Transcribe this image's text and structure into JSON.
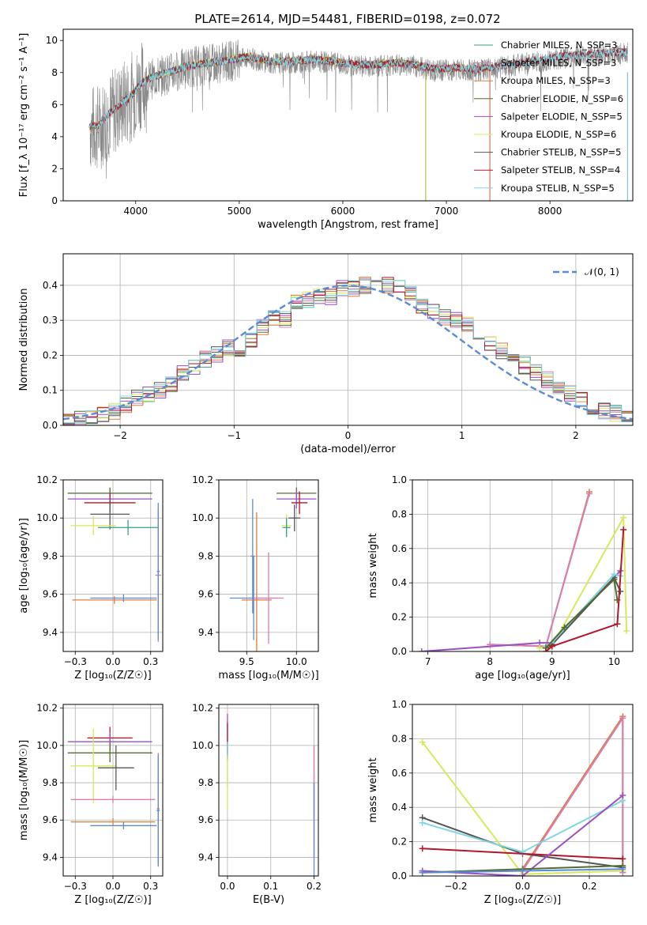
{
  "figure": {
    "title": "PLATE=2614, MJD=54481, FIBERID=0198, z=0.072"
  },
  "palette": {
    "Chabrier MILES": "#3a9d8e",
    "Salpeter MILES": "#d77fb4",
    "Kroupa MILES": "#e07b39",
    "Chabrier ELODIE": "#556b2f",
    "Salpeter ELODIE": "#9a4fc3",
    "Kroupa ELODIE": "#d7e95a",
    "Chabrier STELIB": "#555555",
    "Salpeter STELIB": "#b2182b",
    "Kroupa STELIB": "#7fd6df",
    "observed": "#888888",
    "gaussian": "#5b8bd6",
    "mass-blue": "#5b8bd6"
  },
  "chart_data": [
    {
      "id": "spectrum",
      "type": "line",
      "xlabel": "wavelength [Angstrom, rest frame]",
      "ylabel": "Flux [f_λ 10⁻¹⁷ erg cm⁻² s⁻¹ A⁻¹]",
      "xlim": [
        3300,
        8800
      ],
      "ylim": [
        0,
        10.7
      ],
      "xticks": [
        4000,
        5000,
        6000,
        7000,
        8000
      ],
      "yticks": [
        0,
        2,
        4,
        6,
        8,
        10
      ],
      "grid": false,
      "legend_position": "top-right",
      "legend": [
        {
          "label": "Chabrier MILES, N_SSP=3",
          "series": "Chabrier MILES"
        },
        {
          "label": "Salpeter MILES, N_SSP=3",
          "series": "Salpeter MILES"
        },
        {
          "label": "Kroupa MILES, N_SSP=3",
          "series": "Kroupa MILES"
        },
        {
          "label": "Chabrier ELODIE, N_SSP=6",
          "series": "Chabrier ELODIE"
        },
        {
          "label": "Salpeter ELODIE, N_SSP=5",
          "series": "Salpeter ELODIE"
        },
        {
          "label": "Kroupa ELODIE, N_SSP=6",
          "series": "Kroupa ELODIE"
        },
        {
          "label": "Chabrier STELIB, N_SSP=5",
          "series": "Chabrier STELIB"
        },
        {
          "label": "Salpeter STELIB, N_SSP=4",
          "series": "Salpeter STELIB"
        },
        {
          "label": "Kroupa STELIB, N_SSP=5",
          "series": "Kroupa STELIB"
        }
      ],
      "continuum": {
        "x": [
          3560,
          3650,
          3750,
          3850,
          3950,
          4050,
          4150,
          4300,
          4500,
          4700,
          4900,
          5100,
          5300,
          5500,
          5700,
          5900,
          6100,
          6300,
          6500,
          6700,
          6900,
          7100,
          7300,
          7500,
          7700,
          7900,
          8100,
          8300,
          8500,
          8750
        ],
        "y": [
          4.5,
          4.6,
          5.4,
          5.9,
          6.4,
          7.2,
          7.6,
          7.9,
          8.3,
          8.5,
          8.7,
          8.9,
          8.6,
          8.6,
          8.7,
          8.6,
          8.4,
          8.4,
          8.5,
          8.4,
          8.1,
          8.2,
          8.1,
          8.3,
          8.5,
          8.7,
          8.9,
          9.0,
          9.1,
          9.2
        ]
      },
      "model_ranges": [
        {
          "series": "Chabrier MILES",
          "x": [
            3550,
            7420
          ]
        },
        {
          "series": "Salpeter MILES",
          "x": [
            3550,
            7420
          ]
        },
        {
          "series": "Kroupa MILES",
          "x": [
            3550,
            7420
          ]
        },
        {
          "series": "Chabrier ELODIE",
          "x": [
            3900,
            6800
          ]
        },
        {
          "series": "Salpeter ELODIE",
          "x": [
            3900,
            6800
          ]
        },
        {
          "series": "Kroupa ELODIE",
          "x": [
            3900,
            6800
          ]
        },
        {
          "series": "Chabrier STELIB",
          "x": [
            3550,
            8750
          ]
        },
        {
          "series": "Salpeter STELIB",
          "x": [
            3550,
            8750
          ]
        },
        {
          "series": "Kroupa STELIB",
          "x": [
            3550,
            8750
          ]
        }
      ]
    },
    {
      "id": "residual-hist",
      "type": "line",
      "xlabel": "(data-model)/error",
      "ylabel": "Normed distribution",
      "xlim": [
        -2.5,
        2.5
      ],
      "ylim": [
        0,
        0.49
      ],
      "xticks": [
        -2,
        -1,
        0,
        1,
        2
      ],
      "yticks": [
        0.0,
        0.1,
        0.2,
        0.3,
        0.4
      ],
      "grid": true,
      "legend_position": "top-right",
      "gaussian_label": "𝒩(0, 1)",
      "bin_edges": [
        -2.5,
        -2.4,
        -2.3,
        -2.2,
        -2.1,
        -2.0,
        -1.9,
        -1.8,
        -1.7,
        -1.6,
        -1.5,
        -1.4,
        -1.3,
        -1.2,
        -1.1,
        -1.0,
        -0.9,
        -0.8,
        -0.7,
        -0.6,
        -0.5,
        -0.4,
        -0.3,
        -0.2,
        -0.1,
        0.0,
        0.1,
        0.2,
        0.3,
        0.4,
        0.5,
        0.6,
        0.7,
        0.8,
        0.9,
        1.0,
        1.1,
        1.2,
        1.3,
        1.4,
        1.5,
        1.6,
        1.7,
        1.8,
        1.9,
        2.0,
        2.1,
        2.2,
        2.3,
        2.4,
        2.5
      ],
      "base_density": [
        0.015,
        0.02,
        0.025,
        0.035,
        0.04,
        0.06,
        0.08,
        0.09,
        0.1,
        0.12,
        0.15,
        0.17,
        0.19,
        0.2,
        0.22,
        0.21,
        0.24,
        0.28,
        0.31,
        0.3,
        0.35,
        0.36,
        0.37,
        0.37,
        0.39,
        0.39,
        0.4,
        0.41,
        0.4,
        0.39,
        0.38,
        0.34,
        0.33,
        0.31,
        0.3,
        0.29,
        0.26,
        0.23,
        0.21,
        0.19,
        0.17,
        0.15,
        0.13,
        0.11,
        0.09,
        0.07,
        0.05,
        0.04,
        0.035,
        0.025
      ]
    },
    {
      "id": "age-vs-Z",
      "type": "scatter",
      "xlabel": "Z [log₁₀(Z/Z☉)]",
      "ylabel": "age  [log₁₀(age/yr)]",
      "xlim": [
        -0.33,
        0.33
      ],
      "ylim": [
        9.3,
        10.2
      ],
      "xticks": [
        -0.25,
        0.0,
        0.25
      ],
      "yticks": [
        9.4,
        9.6,
        9.8,
        10.0,
        10.2
      ],
      "grid": true,
      "points": [
        {
          "series": "Kroupa STELIB",
          "x": -0.02,
          "y": 10.13,
          "xerr": 0.28,
          "yerr": 0.03
        },
        {
          "series": "Chabrier ELODIE",
          "x": -0.02,
          "y": 10.13,
          "xerr": 0.28,
          "yerr": 0.03
        },
        {
          "series": "Salpeter ELODIE",
          "x": -0.02,
          "y": 10.1,
          "xerr": 0.28,
          "yerr": 0.03
        },
        {
          "series": "Salpeter STELIB",
          "x": -0.02,
          "y": 10.08,
          "xerr": 0.17,
          "yerr": 0.05
        },
        {
          "series": "Chabrier STELIB",
          "x": -0.02,
          "y": 10.02,
          "xerr": 0.13,
          "yerr": 0.08
        },
        {
          "series": "Kroupa ELODIE",
          "x": -0.13,
          "y": 9.96,
          "xerr": 0.15,
          "yerr": 0.05
        },
        {
          "series": "Chabrier MILES",
          "x": 0.1,
          "y": 9.95,
          "xerr": 0.2,
          "yerr": 0.04
        },
        {
          "series": "Salpeter MILES",
          "x": 0.3,
          "y": 9.7,
          "xerr": 0.02,
          "yerr": 0.35
        },
        {
          "series": "Kroupa MILES",
          "x": 0.01,
          "y": 9.57,
          "xerr": 0.28,
          "yerr": 0.02
        },
        {
          "series": "mass-blue",
          "x": 0.07,
          "y": 9.58,
          "xerr": 0.22,
          "yerr": 0.02
        },
        {
          "series": "mass-blue",
          "x": 0.3,
          "y": 9.72,
          "xerr": 0.01,
          "yerr": 0.36
        }
      ]
    },
    {
      "id": "age-vs-mass",
      "type": "scatter",
      "xlabel": "mass [log₁₀(M/M☉)]",
      "ylabel": "",
      "xlim": [
        9.22,
        10.22
      ],
      "ylim": [
        9.3,
        10.2
      ],
      "xticks": [
        9.5,
        10.0
      ],
      "yticks": [
        9.4,
        9.6,
        9.8,
        10.0,
        10.2
      ],
      "grid": true,
      "points": [
        {
          "series": "Chabrier ELODIE",
          "x": 10.0,
          "y": 10.13,
          "xerr": 0.2,
          "yerr": 0.03
        },
        {
          "series": "Salpeter ELODIE",
          "x": 10.0,
          "y": 10.1,
          "xerr": 0.2,
          "yerr": 0.05
        },
        {
          "series": "Salpeter STELIB",
          "x": 10.03,
          "y": 10.08,
          "xerr": 0.08,
          "yerr": 0.06
        },
        {
          "series": "Chabrier STELIB",
          "x": 9.98,
          "y": 10.0,
          "xerr": 0.06,
          "yerr": 0.07
        },
        {
          "series": "Kroupa ELODIE",
          "x": 9.9,
          "y": 9.96,
          "xerr": 0.05,
          "yerr": 0.06
        },
        {
          "series": "Chabrier MILES",
          "x": 9.9,
          "y": 9.95,
          "xerr": 0.04,
          "yerr": 0.05
        },
        {
          "series": "mass-blue",
          "x": 9.57,
          "y": 9.58,
          "xerr": 0.24,
          "yerr": 0.22
        },
        {
          "series": "Kroupa MILES",
          "x": 9.6,
          "y": 9.57,
          "xerr": 0.15,
          "yerr": 0.46
        },
        {
          "series": "Salpeter MILES",
          "x": 9.72,
          "y": 9.58,
          "xerr": 0.15,
          "yerr": 0.24
        },
        {
          "series": "mass-blue",
          "x": 9.56,
          "y": 9.8,
          "xerr": 0.02,
          "yerr": 0.3
        }
      ]
    },
    {
      "id": "mass-weight-vs-age",
      "type": "line",
      "xlabel": "age  [log₁₀(age/yr)]",
      "ylabel": "mass weight",
      "xlim": [
        6.75,
        10.3
      ],
      "ylim": [
        0,
        1.0
      ],
      "xticks": [
        7,
        8,
        9,
        10
      ],
      "yticks": [
        0.0,
        0.2,
        0.4,
        0.6,
        0.8,
        1.0
      ],
      "grid": true,
      "series": [
        {
          "series": "Kroupa MILES",
          "x": [
            8.0,
            8.9,
            9.6
          ],
          "y": [
            0.04,
            0.03,
            0.93
          ]
        },
        {
          "series": "Salpeter MILES",
          "x": [
            8.0,
            8.9,
            9.6
          ],
          "y": [
            0.04,
            0.03,
            0.92
          ]
        },
        {
          "series": "Salpeter ELODIE",
          "x": [
            6.9,
            8.8,
            9.0,
            10.1
          ],
          "y": [
            0.0,
            0.05,
            0.05,
            0.47
          ]
        },
        {
          "series": "Kroupa ELODIE",
          "x": [
            8.8,
            9.0,
            10.15,
            10.2
          ],
          "y": [
            0.02,
            0.03,
            0.78,
            0.12
          ]
        },
        {
          "series": "Chabrier STELIB",
          "x": [
            8.9,
            9.0,
            10.0,
            10.1
          ],
          "y": [
            0.02,
            0.04,
            0.43,
            0.35
          ]
        },
        {
          "series": "Kroupa STELIB",
          "x": [
            8.9,
            9.0,
            10.0,
            10.1
          ],
          "y": [
            0.03,
            0.05,
            0.45,
            0.44
          ]
        },
        {
          "series": "Chabrier ELODIE",
          "x": [
            8.9,
            9.2,
            10.0,
            10.05
          ],
          "y": [
            0.02,
            0.14,
            0.42,
            0.3
          ]
        },
        {
          "series": "Salpeter STELIB",
          "x": [
            8.9,
            9.0,
            10.05,
            10.15
          ],
          "y": [
            0.0,
            0.03,
            0.16,
            0.71
          ]
        }
      ]
    },
    {
      "id": "mass-vs-Z",
      "type": "scatter",
      "xlabel": "Z [log₁₀(Z/Z☉)]",
      "ylabel": "mass [log₁₀(M/M☉)]",
      "xlim": [
        -0.33,
        0.33
      ],
      "ylim": [
        9.3,
        10.22
      ],
      "xticks": [
        -0.25,
        0.0,
        0.25
      ],
      "yticks": [
        9.4,
        9.6,
        9.8,
        10.0,
        10.2
      ],
      "grid": true,
      "points": [
        {
          "series": "Salpeter STELIB",
          "x": -0.02,
          "y": 10.04,
          "xerr": 0.15,
          "yerr": 0.06
        },
        {
          "series": "Salpeter ELODIE",
          "x": -0.02,
          "y": 10.02,
          "xerr": 0.28,
          "yerr": 0.05
        },
        {
          "series": "Chabrier ELODIE",
          "x": -0.02,
          "y": 9.96,
          "xerr": 0.28,
          "yerr": 0.05
        },
        {
          "series": "Kroupa ELODIE",
          "x": -0.13,
          "y": 9.89,
          "xerr": 0.15,
          "yerr": 0.2
        },
        {
          "series": "Chabrier STELIB",
          "x": 0.02,
          "y": 9.88,
          "xerr": 0.12,
          "yerr": 0.12
        },
        {
          "series": "Salpeter MILES",
          "x": 0.0,
          "y": 9.71,
          "xerr": 0.28,
          "yerr": 0.02
        },
        {
          "series": "Kroupa MILES",
          "x": 0.0,
          "y": 9.59,
          "xerr": 0.28,
          "yerr": 0.02
        },
        {
          "series": "mass-blue",
          "x": 0.07,
          "y": 9.57,
          "xerr": 0.22,
          "yerr": 0.02
        },
        {
          "series": "Kroupa MILES",
          "x": 0.3,
          "y": 9.66,
          "xerr": 0.01,
          "yerr": 0.3
        },
        {
          "series": "mass-blue",
          "x": 0.3,
          "y": 9.65,
          "xerr": 0.01,
          "yerr": 0.3
        }
      ]
    },
    {
      "id": "mass-vs-ebv",
      "type": "scatter",
      "xlabel": "E(B-V)",
      "ylabel": "",
      "xlim": [
        -0.02,
        0.21
      ],
      "ylim": [
        9.3,
        10.22
      ],
      "xticks": [
        0.0,
        0.1,
        0.2
      ],
      "yticks": [
        9.4,
        9.6,
        9.8,
        10.0,
        10.2
      ],
      "grid": true,
      "points": [
        {
          "series": "Salpeter ELODIE",
          "x": 0.0,
          "y": 10.05,
          "xerr": 0.0,
          "yerr": 0.12
        },
        {
          "series": "Salpeter STELIB",
          "x": 0.0,
          "y": 10.02,
          "xerr": 0.0,
          "yerr": 0.1
        },
        {
          "series": "Kroupa STELIB",
          "x": 0.0,
          "y": 9.9,
          "xerr": 0.0,
          "yerr": 0.12
        },
        {
          "series": "Kroupa ELODIE",
          "x": 0.0,
          "y": 9.8,
          "xerr": 0.0,
          "yerr": 0.15
        },
        {
          "series": "Kroupa MILES",
          "x": 0.2,
          "y": 9.7,
          "xerr": 0.0,
          "yerr": 0.3
        },
        {
          "series": "Salpeter MILES",
          "x": 0.2,
          "y": 9.8,
          "xerr": 0.0,
          "yerr": 0.2
        },
        {
          "series": "mass-blue",
          "x": 0.2,
          "y": 9.55,
          "xerr": 0.0,
          "yerr": 0.25
        }
      ]
    },
    {
      "id": "mass-weight-vs-Z",
      "type": "line",
      "xlabel": "Z [log₁₀(Z/Z☉)]",
      "ylabel": "mass weight",
      "xlim": [
        -0.33,
        0.33
      ],
      "ylim": [
        0,
        1.0
      ],
      "xticks": [
        -0.2,
        0.0,
        0.2
      ],
      "yticks": [
        0.0,
        0.2,
        0.4,
        0.6,
        0.8,
        1.0
      ],
      "grid": true,
      "series": [
        {
          "series": "Kroupa ELODIE",
          "x": [
            -0.3,
            0.0,
            0.3
          ],
          "y": [
            0.78,
            0.01,
            0.03
          ]
        },
        {
          "series": "Kroupa MILES",
          "x": [
            0.0,
            0.3,
            0.3
          ],
          "y": [
            0.04,
            0.93,
            0.02
          ]
        },
        {
          "series": "Salpeter MILES",
          "x": [
            0.0,
            0.3,
            0.3
          ],
          "y": [
            0.03,
            0.92,
            0.02
          ]
        },
        {
          "series": "Chabrier STELIB",
          "x": [
            -0.3,
            0.0,
            0.3
          ],
          "y": [
            0.34,
            0.13,
            0.05
          ]
        },
        {
          "series": "Kroupa STELIB",
          "x": [
            -0.3,
            0.0,
            0.3
          ],
          "y": [
            0.31,
            0.14,
            0.44
          ]
        },
        {
          "series": "Salpeter STELIB",
          "x": [
            -0.3,
            0.3
          ],
          "y": [
            0.16,
            0.1
          ]
        },
        {
          "series": "Salpeter ELODIE",
          "x": [
            -0.3,
            0.0,
            0.3
          ],
          "y": [
            0.03,
            0.0,
            0.47
          ]
        },
        {
          "series": "Chabrier ELODIE",
          "x": [
            -0.3,
            0.0,
            0.3
          ],
          "y": [
            0.02,
            0.04,
            0.06
          ]
        },
        {
          "series": "mass-blue",
          "x": [
            -0.3,
            0.0,
            0.3
          ],
          "y": [
            0.02,
            0.03,
            0.04
          ]
        }
      ]
    }
  ]
}
